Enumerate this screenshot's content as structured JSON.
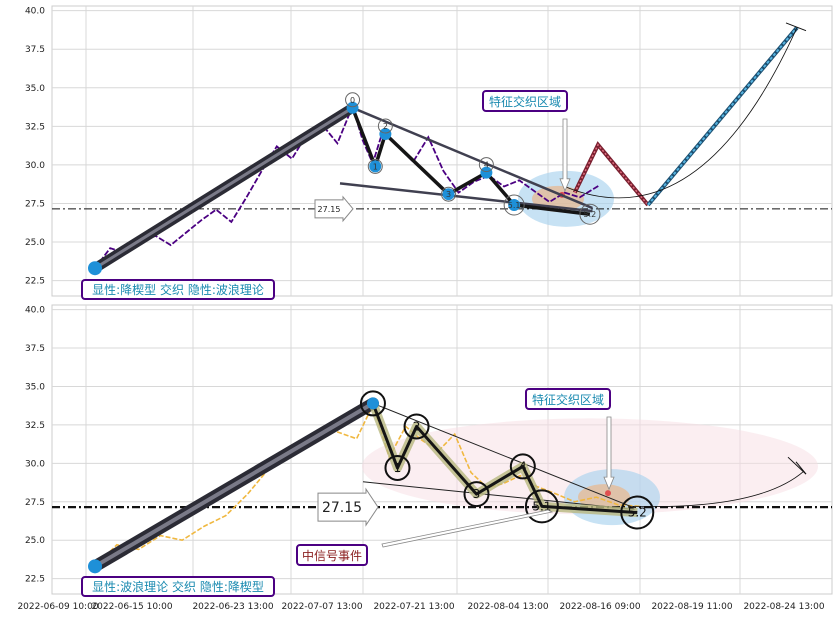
{
  "chart_data": [
    {
      "type": "line",
      "panel": "top",
      "ylim": [
        21.5,
        40.3
      ],
      "yticks": [
        "40.0",
        "37.5",
        "35.0",
        "32.5",
        "30.0",
        "27.5",
        "25.0",
        "22.5"
      ],
      "grid": true,
      "price_series": [
        {
          "t": 0.0,
          "v": 23.3
        },
        {
          "t": 0.03,
          "v": 24.6
        },
        {
          "t": 0.06,
          "v": 24.3
        },
        {
          "t": 0.09,
          "v": 25.0
        },
        {
          "t": 0.12,
          "v": 25.4
        },
        {
          "t": 0.15,
          "v": 24.8
        },
        {
          "t": 0.18,
          "v": 25.6
        },
        {
          "t": 0.21,
          "v": 26.4
        },
        {
          "t": 0.24,
          "v": 27.1
        },
        {
          "t": 0.27,
          "v": 26.3
        },
        {
          "t": 0.3,
          "v": 27.9
        },
        {
          "t": 0.33,
          "v": 29.6
        },
        {
          "t": 0.36,
          "v": 31.2
        },
        {
          "t": 0.39,
          "v": 30.4
        },
        {
          "t": 0.42,
          "v": 32.0
        },
        {
          "t": 0.45,
          "v": 32.6
        },
        {
          "t": 0.48,
          "v": 31.4
        },
        {
          "t": 0.51,
          "v": 33.8
        },
        {
          "t": 0.53,
          "v": 31.6
        },
        {
          "t": 0.55,
          "v": 30.1
        },
        {
          "t": 0.57,
          "v": 32.2
        },
        {
          "t": 0.6,
          "v": 31.2
        },
        {
          "t": 0.63,
          "v": 30.2
        },
        {
          "t": 0.66,
          "v": 31.8
        },
        {
          "t": 0.69,
          "v": 29.6
        },
        {
          "t": 0.72,
          "v": 28.2
        },
        {
          "t": 0.75,
          "v": 28.9
        },
        {
          "t": 0.78,
          "v": 29.3
        },
        {
          "t": 0.81,
          "v": 28.6
        },
        {
          "t": 0.84,
          "v": 29.0
        },
        {
          "t": 0.87,
          "v": 28.3
        },
        {
          "t": 0.9,
          "v": 27.6
        },
        {
          "t": 0.93,
          "v": 28.2
        },
        {
          "t": 0.96,
          "v": 27.9
        },
        {
          "t": 1.0,
          "v": 28.7
        }
      ],
      "wave_points": [
        {
          "label": "0",
          "t": 0.51,
          "v": 33.7
        },
        {
          "label": "1",
          "t": 0.555,
          "v": 29.9
        },
        {
          "label": "2",
          "t": 0.575,
          "v": 32.0
        },
        {
          "label": "3",
          "t": 0.7,
          "v": 28.1
        },
        {
          "label": "4",
          "t": 0.775,
          "v": 29.5
        },
        {
          "label": "5.1",
          "t": 0.83,
          "v": 27.4
        },
        {
          "label": "5.2",
          "t": 0.98,
          "v": 26.8
        }
      ],
      "support_value": 27.15,
      "support_label": "27.15",
      "box_labels": {
        "top_left": "显性:降楔型 交织 隐性:波浪理论",
        "feature_zone": "特征交织区域"
      }
    },
    {
      "type": "line",
      "panel": "bottom",
      "ylim": [
        21.5,
        40.3
      ],
      "yticks": [
        "40.0",
        "37.5",
        "35.0",
        "32.5",
        "30.0",
        "27.5",
        "25.0",
        "22.5"
      ],
      "grid": true,
      "xticks": [
        "2022-06-09 10:00",
        "2022-06-15 10:00",
        "2022-06-23 13:00",
        "2022-07-07 13:00",
        "2022-07-21 13:00",
        "2022-08-04 13:00",
        "2022-08-16 09:00",
        "2022-08-19 11:00",
        "2022-08-24 13:00"
      ],
      "price_series": [
        {
          "t": 0.0,
          "v": 23.3
        },
        {
          "t": 0.04,
          "v": 24.7
        },
        {
          "t": 0.08,
          "v": 24.4
        },
        {
          "t": 0.12,
          "v": 25.3
        },
        {
          "t": 0.16,
          "v": 25.0
        },
        {
          "t": 0.2,
          "v": 25.9
        },
        {
          "t": 0.24,
          "v": 26.6
        },
        {
          "t": 0.28,
          "v": 28.0
        },
        {
          "t": 0.32,
          "v": 29.7
        },
        {
          "t": 0.36,
          "v": 30.8
        },
        {
          "t": 0.4,
          "v": 31.3
        },
        {
          "t": 0.44,
          "v": 32.1
        },
        {
          "t": 0.48,
          "v": 31.6
        },
        {
          "t": 0.51,
          "v": 33.8
        },
        {
          "t": 0.54,
          "v": 30.4
        },
        {
          "t": 0.57,
          "v": 32.4
        },
        {
          "t": 0.6,
          "v": 31.5
        },
        {
          "t": 0.63,
          "v": 30.8
        },
        {
          "t": 0.66,
          "v": 31.9
        },
        {
          "t": 0.69,
          "v": 29.4
        },
        {
          "t": 0.72,
          "v": 28.4
        },
        {
          "t": 0.75,
          "v": 28.7
        },
        {
          "t": 0.78,
          "v": 29.2
        },
        {
          "t": 0.81,
          "v": 28.5
        },
        {
          "t": 0.84,
          "v": 28.1
        },
        {
          "t": 0.88,
          "v": 27.5
        },
        {
          "t": 0.92,
          "v": 27.8
        },
        {
          "t": 0.96,
          "v": 27.3
        },
        {
          "t": 1.0,
          "v": 27.2
        }
      ],
      "wave_points": [
        {
          "label": "0",
          "t": 0.51,
          "v": 33.9
        },
        {
          "label": "1",
          "t": 0.555,
          "v": 29.7
        },
        {
          "label": "2",
          "t": 0.59,
          "v": 32.4
        },
        {
          "label": "3",
          "t": 0.7,
          "v": 28.0
        },
        {
          "label": "4",
          "t": 0.785,
          "v": 29.8
        },
        {
          "label": "5.1",
          "t": 0.82,
          "v": 27.2
        },
        {
          "label": "5.2",
          "t": 0.995,
          "v": 26.8
        }
      ],
      "support_value": 27.15,
      "support_label": "27.15",
      "box_labels": {
        "bottom_left": "显性:波浪理论 交织 隐性:降楔型",
        "feature_zone": "特征交织区域",
        "signal_event": "中信号事件"
      }
    }
  ],
  "colors": {
    "price_top": "#4b0082",
    "price_bottom": "#f0b840",
    "trend_fill": "#606070",
    "blue_dot": "#1e90d8",
    "box_border": "#4b0082",
    "box_text": "#1a8ab0",
    "signal_text": "#8b2020",
    "grid": "#d8d8d8"
  }
}
